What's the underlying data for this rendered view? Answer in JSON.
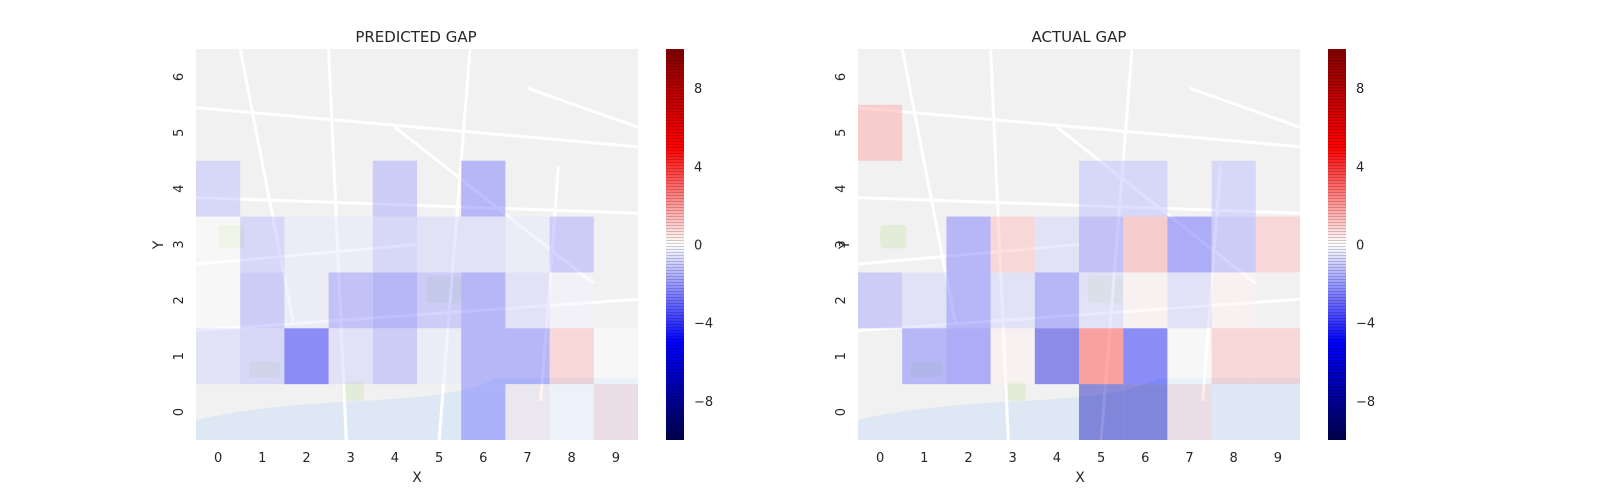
{
  "chart_data": [
    {
      "type": "heatmap",
      "title": "PREDICTED GAP",
      "xlabel": "X",
      "ylabel": "Y",
      "x_ticks": [
        "0",
        "1",
        "2",
        "3",
        "4",
        "5",
        "6",
        "7",
        "8",
        "9"
      ],
      "y_ticks": [
        "0",
        "1",
        "2",
        "3",
        "4",
        "5",
        "6"
      ],
      "colormap": "seismic",
      "vmin": -10,
      "vmax": 10,
      "background": "street map",
      "cells": [
        {
          "x": 0,
          "y": 4,
          "value": -1.5
        },
        {
          "x": 4,
          "y": 4,
          "value": -2
        },
        {
          "x": 6,
          "y": 4,
          "value": -3
        },
        {
          "x": 0,
          "y": 3,
          "value": 0
        },
        {
          "x": 1,
          "y": 3,
          "value": -1.5
        },
        {
          "x": 2,
          "y": 3,
          "value": -0.5
        },
        {
          "x": 3,
          "y": 3,
          "value": -0.5
        },
        {
          "x": 4,
          "y": 3,
          "value": -1.5
        },
        {
          "x": 5,
          "y": 3,
          "value": -1
        },
        {
          "x": 6,
          "y": 3,
          "value": -1
        },
        {
          "x": 7,
          "y": 3,
          "value": -0.5
        },
        {
          "x": 8,
          "y": 3,
          "value": -2
        },
        {
          "x": 0,
          "y": 2,
          "value": 0
        },
        {
          "x": 1,
          "y": 2,
          "value": -2
        },
        {
          "x": 2,
          "y": 2,
          "value": -0.5
        },
        {
          "x": 3,
          "y": 2,
          "value": -2.5
        },
        {
          "x": 4,
          "y": 2,
          "value": -3
        },
        {
          "x": 5,
          "y": 2,
          "value": -2
        },
        {
          "x": 6,
          "y": 2,
          "value": -3
        },
        {
          "x": 7,
          "y": 2,
          "value": -1
        },
        {
          "x": 8,
          "y": 2,
          "value": -0.3
        },
        {
          "x": 0,
          "y": 1,
          "value": -1
        },
        {
          "x": 1,
          "y": 1,
          "value": -1.5
        },
        {
          "x": 2,
          "y": 1,
          "value": -5
        },
        {
          "x": 3,
          "y": 1,
          "value": -1
        },
        {
          "x": 4,
          "y": 1,
          "value": -2
        },
        {
          "x": 5,
          "y": 1,
          "value": -0.5
        },
        {
          "x": 6,
          "y": 1,
          "value": -3
        },
        {
          "x": 7,
          "y": 1,
          "value": -3
        },
        {
          "x": 8,
          "y": 1,
          "value": 1.5
        },
        {
          "x": 9,
          "y": 1,
          "value": 0
        },
        {
          "x": 6,
          "y": 0,
          "value": -3
        },
        {
          "x": 7,
          "y": 0,
          "value": 0.5
        },
        {
          "x": 8,
          "y": 0,
          "value": 0
        },
        {
          "x": 9,
          "y": 0,
          "value": 1
        }
      ],
      "colorbar_ticks": [
        8,
        4,
        0,
        -4,
        -8
      ]
    },
    {
      "type": "heatmap",
      "title": "ACTUAL GAP",
      "xlabel": "X",
      "ylabel": "Y",
      "x_ticks": [
        "0",
        "1",
        "2",
        "3",
        "4",
        "5",
        "6",
        "7",
        "8",
        "9"
      ],
      "y_ticks": [
        "0",
        "1",
        "2",
        "3",
        "4",
        "5",
        "6"
      ],
      "colormap": "seismic",
      "vmin": -10,
      "vmax": 10,
      "background": "street map",
      "cells": [
        {
          "x": 0,
          "y": 5,
          "value": 2
        },
        {
          "x": 5,
          "y": 4,
          "value": -1.5
        },
        {
          "x": 6,
          "y": 4,
          "value": -1.5
        },
        {
          "x": 8,
          "y": 4,
          "value": -1.5
        },
        {
          "x": 2,
          "y": 3,
          "value": -3
        },
        {
          "x": 3,
          "y": 3,
          "value": 1.5
        },
        {
          "x": 4,
          "y": 3,
          "value": -1
        },
        {
          "x": 5,
          "y": 3,
          "value": -2.5
        },
        {
          "x": 6,
          "y": 3,
          "value": 2
        },
        {
          "x": 7,
          "y": 3,
          "value": -3.5
        },
        {
          "x": 8,
          "y": 3,
          "value": -2
        },
        {
          "x": 9,
          "y": 3,
          "value": 1.5
        },
        {
          "x": 0,
          "y": 2,
          "value": -2
        },
        {
          "x": 1,
          "y": 2,
          "value": -1
        },
        {
          "x": 2,
          "y": 2,
          "value": -3
        },
        {
          "x": 3,
          "y": 2,
          "value": -1
        },
        {
          "x": 4,
          "y": 2,
          "value": -3
        },
        {
          "x": 5,
          "y": 2,
          "value": -1
        },
        {
          "x": 6,
          "y": 2,
          "value": 0.3
        },
        {
          "x": 7,
          "y": 2,
          "value": -1
        },
        {
          "x": 8,
          "y": 2,
          "value": 0.3
        },
        {
          "x": 1,
          "y": 1,
          "value": -3
        },
        {
          "x": 2,
          "y": 1,
          "value": -3.5
        },
        {
          "x": 3,
          "y": 1,
          "value": 0.3
        },
        {
          "x": 4,
          "y": 1,
          "value": -6
        },
        {
          "x": 5,
          "y": 1,
          "value": 4
        },
        {
          "x": 6,
          "y": 1,
          "value": -5
        },
        {
          "x": 7,
          "y": 1,
          "value": 0
        },
        {
          "x": 8,
          "y": 1,
          "value": 1.5
        },
        {
          "x": 9,
          "y": 1,
          "value": 1.5
        },
        {
          "x": 5,
          "y": 0,
          "value": -7
        },
        {
          "x": 6,
          "y": 0,
          "value": -7
        },
        {
          "x": 7,
          "y": 0,
          "value": 1
        }
      ],
      "colorbar_ticks": [
        8,
        4,
        0,
        -4,
        -8
      ]
    }
  ]
}
